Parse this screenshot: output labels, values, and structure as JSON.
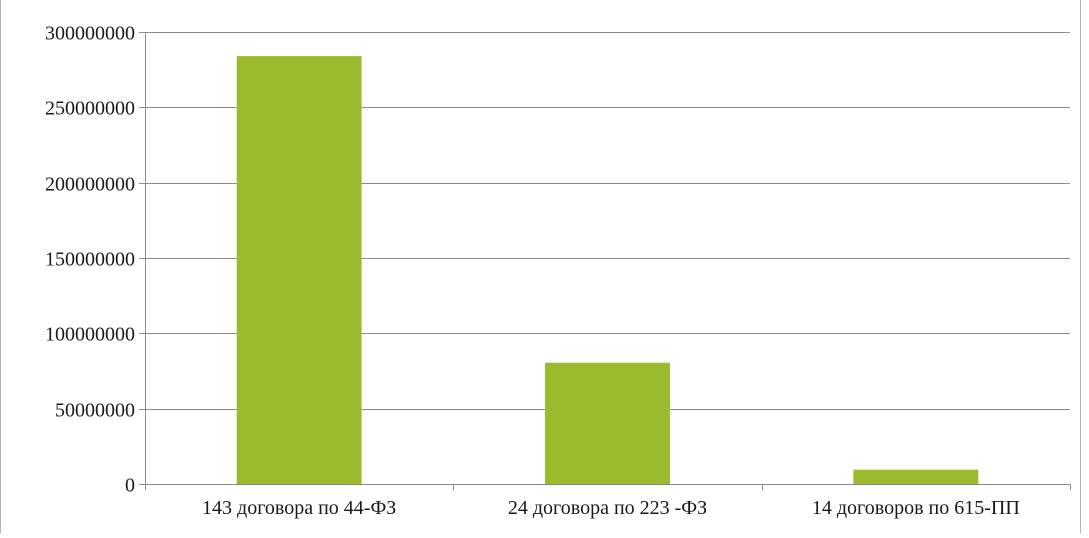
{
  "chart_data": {
    "type": "bar",
    "title": "",
    "xlabel": "",
    "ylabel": "",
    "categories": [
      "143 договора по 44-ФЗ",
      "24 договора по 223 -ФЗ",
      "14 договоров по 615-ПП"
    ],
    "values": [
      284000000,
      80500000,
      9500000
    ],
    "ylim": [
      0,
      300000000
    ],
    "yticks": [
      "0",
      "50000000",
      "100000000",
      "150000000",
      "200000000",
      "250000000",
      "300000000"
    ],
    "ytick_values": [
      0,
      50000000,
      100000000,
      150000000,
      200000000,
      250000000,
      300000000
    ],
    "bar_color": "#9bbb2e",
    "grid": true,
    "legend": "none"
  }
}
